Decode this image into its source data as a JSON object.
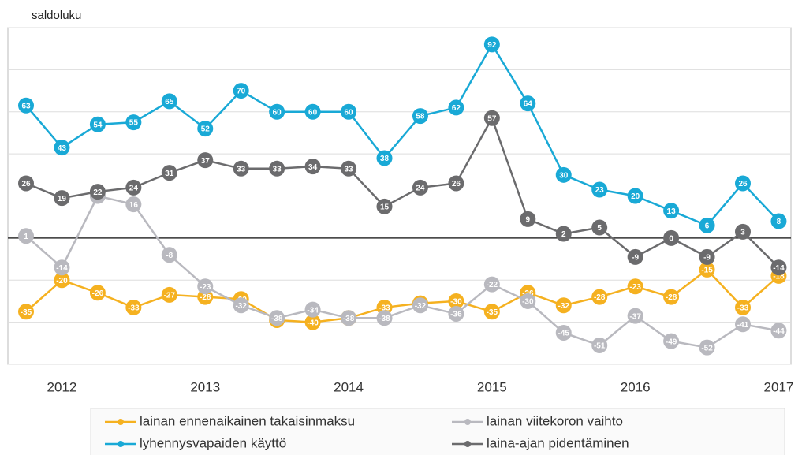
{
  "chart_data": {
    "type": "line",
    "y_label": "saldoluku",
    "categories": [
      null,
      "2012",
      null,
      null,
      null,
      "2013",
      null,
      null,
      null,
      "2014",
      null,
      null,
      null,
      "2015",
      null,
      null,
      null,
      "2016",
      null,
      null,
      null,
      "2017"
    ],
    "ylim": [
      -60,
      100
    ],
    "yticks": [
      -60,
      -40,
      -20,
      0,
      20,
      40,
      60,
      80,
      100
    ],
    "grid": true,
    "series": [
      {
        "name": "lainan ennenaikainen takaisinmaksu",
        "color": "#f5b120",
        "values": [
          -35,
          -20,
          -26,
          -33,
          -27,
          -28,
          -29,
          -39,
          -40,
          -38,
          -33,
          -31,
          -30,
          -35,
          -26,
          -32,
          -28,
          -23,
          -28,
          -15,
          -33,
          -18
        ]
      },
      {
        "name": "lainan viitekoron vaihto",
        "color": "#b9b9bf",
        "values": [
          1,
          -14,
          20,
          16,
          -8,
          -23,
          -32,
          -38,
          -34,
          -38,
          -38,
          -32,
          -36,
          -22,
          -30,
          -45,
          -51,
          -37,
          -49,
          -52,
          -41,
          -44
        ]
      },
      {
        "name": "lyhennysvapaiden käyttö",
        "color": "#19a9d6",
        "values": [
          63,
          43,
          54,
          55,
          65,
          52,
          70,
          60,
          60,
          60,
          38,
          58,
          62,
          92,
          64,
          30,
          23,
          20,
          13,
          6,
          26,
          8
        ]
      },
      {
        "name": "laina-ajan pidentäminen",
        "color": "#6b6b6d",
        "values": [
          26,
          19,
          22,
          24,
          31,
          37,
          33,
          33,
          34,
          33,
          15,
          24,
          26,
          57,
          9,
          2,
          5,
          -9,
          0,
          -9,
          3,
          -14
        ]
      }
    ]
  }
}
